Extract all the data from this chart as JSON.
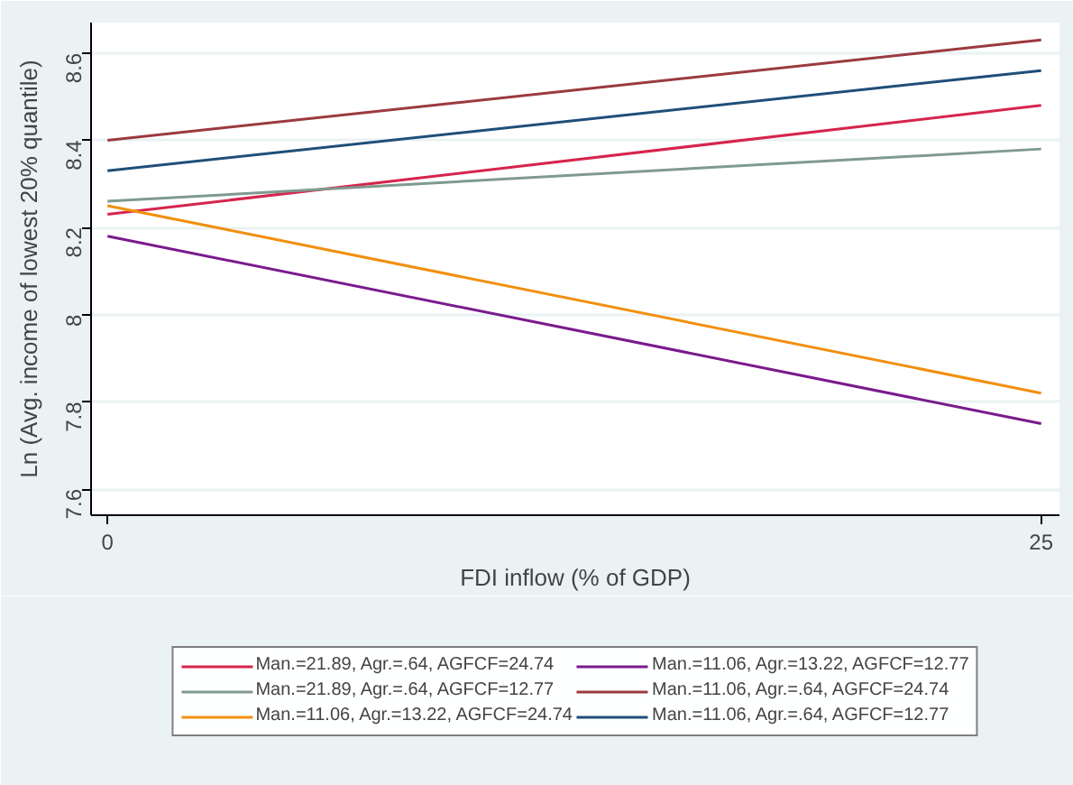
{
  "chart_data": {
    "type": "line",
    "xlabel": "FDI inflow (% of GDP)",
    "ylabel": "Ln (Avg. income of lowest 20% quantile)",
    "x": [
      0,
      25
    ],
    "xlim": [
      -0.44,
      25.49
    ],
    "xticks": [
      0,
      25
    ],
    "ylim": [
      7.54,
      8.67
    ],
    "yticks": [
      7.6,
      7.8,
      8,
      8.2,
      8.4,
      8.6
    ],
    "grid": "y",
    "legend": "bottom",
    "line_style": "solid",
    "marker": "none",
    "series": [
      {
        "name": "Man.=21.89, Agr.=.64, AGFCF=24.74",
        "color": "#d6254d",
        "values": [
          8.23,
          8.48
        ]
      },
      {
        "name": "Man.=11.06, Agr.=13.22, AGFCF=12.77",
        "color": "#7a1a8e",
        "values": [
          8.18,
          7.75
        ]
      },
      {
        "name": "Man.=21.89, Agr.=.64, AGFCF=12.77",
        "color": "#7f9a8f",
        "values": [
          8.26,
          8.38
        ]
      },
      {
        "name": "Man.=11.06, Agr.=.64, AGFCF=24.74",
        "color": "#9b3a3f",
        "values": [
          8.4,
          8.63
        ]
      },
      {
        "name": "Man.=11.06, Agr.=13.22, AGFCF=24.74",
        "color": "#f0900f",
        "values": [
          8.25,
          7.82
        ]
      },
      {
        "name": "Man.=11.06, Agr.=.64, AGFCF=12.77",
        "color": "#1f4e79",
        "values": [
          8.33,
          8.56
        ]
      }
    ]
  }
}
